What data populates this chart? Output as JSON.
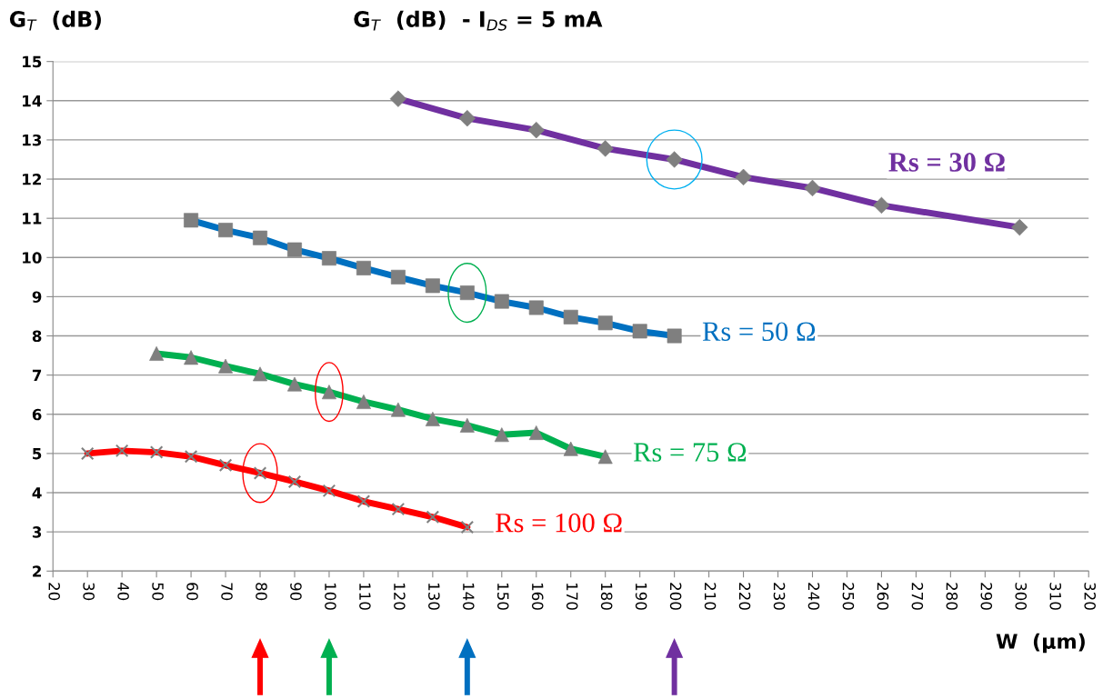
{
  "chart_data": {
    "type": "line",
    "title": "G$_{T}$  (dB)  - I$_{DS}$ = 5 mA",
    "ylabel": "G$_{T}$  (dB)",
    "xlabel": "W  (µm)",
    "xlim": [
      20,
      320
    ],
    "xticks": [
      20,
      30,
      40,
      50,
      60,
      70,
      80,
      90,
      100,
      110,
      120,
      130,
      140,
      150,
      160,
      170,
      180,
      190,
      200,
      210,
      220,
      230,
      240,
      250,
      260,
      270,
      280,
      290,
      300,
      310,
      320
    ],
    "ylim": [
      2,
      15
    ],
    "yticks": [
      2,
      3,
      4,
      5,
      6,
      7,
      8,
      9,
      10,
      11,
      12,
      13,
      14,
      15
    ],
    "grid": "y",
    "legend": false,
    "series": [
      {
        "name": "Rs = 30 Ω",
        "color": "#7030a0",
        "marker": "diamond",
        "x": [
          120,
          140,
          160,
          180,
          200,
          220,
          240,
          260,
          300
        ],
        "values": [
          14.05,
          13.55,
          13.25,
          12.78,
          12.5,
          12.05,
          11.77,
          11.33,
          10.77
        ]
      },
      {
        "name": "Rs = 50 Ω",
        "color": "#0070c0",
        "marker": "square",
        "x": [
          60,
          70,
          80,
          90,
          100,
          110,
          120,
          130,
          140,
          150,
          160,
          170,
          180,
          190,
          200
        ],
        "values": [
          10.95,
          10.7,
          10.5,
          10.2,
          9.98,
          9.73,
          9.5,
          9.28,
          9.1,
          8.88,
          8.72,
          8.48,
          8.33,
          8.12,
          8.0
        ]
      },
      {
        "name": "Rs = 75 Ω",
        "color": "#00b050",
        "marker": "triangle",
        "x": [
          50,
          60,
          70,
          80,
          90,
          100,
          110,
          120,
          130,
          140,
          150,
          160,
          170,
          180
        ],
        "values": [
          7.55,
          7.45,
          7.23,
          7.03,
          6.77,
          6.57,
          6.32,
          6.12,
          5.88,
          5.72,
          5.48,
          5.53,
          5.12,
          4.92
        ]
      },
      {
        "name": "Rs = 100 Ω",
        "color": "#ff0000",
        "marker": "cross",
        "x": [
          30,
          40,
          50,
          60,
          70,
          80,
          90,
          100,
          110,
          120,
          130,
          140
        ],
        "values": [
          5.0,
          5.07,
          5.03,
          4.92,
          4.7,
          4.5,
          4.28,
          4.05,
          3.78,
          3.58,
          3.38,
          3.12
        ]
      }
    ]
  }
}
